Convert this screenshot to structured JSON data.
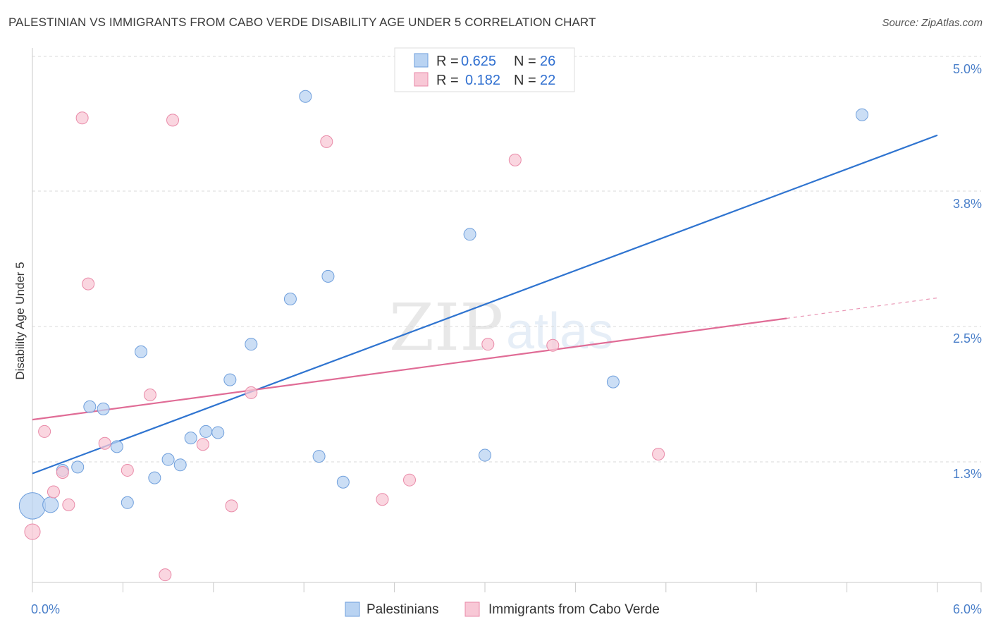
{
  "title": "PALESTINIAN VS IMMIGRANTS FROM CABO VERDE DISABILITY AGE UNDER 5 CORRELATION CHART",
  "source": "Source: ZipAtlas.com",
  "watermark": {
    "zip": "ZIP",
    "atlas": "atlas"
  },
  "colors": {
    "blue_fill": "#b9d3f2",
    "blue_stroke": "#6f9fdc",
    "blue_line": "#2f74d0",
    "pink_fill": "#f8c8d6",
    "pink_stroke": "#e98aa8",
    "pink_line": "#e06c96",
    "grid": "#d9d9d9",
    "tick_label": "#4a7fc9"
  },
  "legend": {
    "rows": [
      {
        "r_label": "R =",
        "r_value": "0.625",
        "n_label": "N =",
        "n_value": "26"
      },
      {
        "r_label": "R =",
        "r_value": "0.182",
        "n_label": "N =",
        "n_value": "22"
      }
    ]
  },
  "chart_data": {
    "type": "scatter",
    "title": "PALESTINIAN VS IMMIGRANTS FROM CABO VERDE DISABILITY AGE UNDER 5 CORRELATION CHART",
    "xlabel": "",
    "ylabel": "Disability Age Under 5",
    "xlim": [
      0,
      6.0
    ],
    "ylim": [
      0.0,
      5.2
    ],
    "x_tick_labels": [
      "0.0%",
      "6.0%"
    ],
    "y_ticks": [
      {
        "value": 5.0,
        "label": "5.0%"
      },
      {
        "value": 3.8,
        "label": "3.8%"
      },
      {
        "value": 2.5,
        "label": "2.5%"
      },
      {
        "value": 1.3,
        "label": "1.3%"
      }
    ],
    "grid": true,
    "legend_position": "top-center",
    "series": [
      {
        "name": "Palestinians",
        "color": "blue",
        "points": [
          [
            0.0,
            0.94,
            2.2
          ],
          [
            0.12,
            0.95,
            1.3
          ],
          [
            0.2,
            1.27,
            1
          ],
          [
            0.3,
            1.3,
            1
          ],
          [
            0.38,
            1.86,
            1
          ],
          [
            0.47,
            1.84,
            1
          ],
          [
            0.56,
            1.49,
            1
          ],
          [
            0.63,
            0.97,
            1
          ],
          [
            0.72,
            2.37,
            1
          ],
          [
            0.81,
            1.2,
            1
          ],
          [
            0.9,
            1.37,
            1
          ],
          [
            0.98,
            1.32,
            1
          ],
          [
            1.05,
            1.57,
            1
          ],
          [
            1.15,
            1.63,
            1
          ],
          [
            1.23,
            1.62,
            1
          ],
          [
            1.31,
            2.11,
            1
          ],
          [
            1.45,
            2.44,
            1
          ],
          [
            1.71,
            2.86,
            1
          ],
          [
            1.81,
            4.74,
            1
          ],
          [
            1.9,
            1.4,
            1
          ],
          [
            1.96,
            3.07,
            1
          ],
          [
            2.06,
            1.16,
            1
          ],
          [
            2.9,
            3.46,
            1
          ],
          [
            3.0,
            1.41,
            1
          ],
          [
            3.85,
            2.09,
            1
          ],
          [
            5.5,
            4.57,
            1
          ]
        ],
        "trend": {
          "x0": 0.0,
          "y0": 1.24,
          "x1": 6.0,
          "y1": 4.38
        }
      },
      {
        "name": "Immigrants from Cabo Verde",
        "color": "pink",
        "points": [
          [
            0.0,
            0.7,
            1.3
          ],
          [
            0.08,
            1.63,
            1
          ],
          [
            0.14,
            1.07,
            1
          ],
          [
            0.2,
            1.25,
            1
          ],
          [
            0.24,
            0.95,
            1
          ],
          [
            0.33,
            4.54,
            1
          ],
          [
            0.37,
            3.0,
            1
          ],
          [
            0.48,
            1.52,
            1
          ],
          [
            0.63,
            1.27,
            1
          ],
          [
            0.78,
            1.97,
            1
          ],
          [
            0.88,
            0.3,
            1
          ],
          [
            0.93,
            4.52,
            1
          ],
          [
            1.13,
            1.51,
            1
          ],
          [
            1.32,
            0.94,
            1
          ],
          [
            1.45,
            1.99,
            1
          ],
          [
            1.95,
            4.32,
            1
          ],
          [
            2.32,
            1.0,
            1
          ],
          [
            2.5,
            1.18,
            1
          ],
          [
            3.02,
            2.44,
            1
          ],
          [
            3.2,
            4.15,
            1
          ],
          [
            3.45,
            2.43,
            1
          ],
          [
            4.15,
            1.42,
            1
          ]
        ],
        "trend": {
          "x0": 0.0,
          "y0": 1.74,
          "x1": 5.0,
          "y1": 2.68,
          "dash_x1": 6.0,
          "dash_y1": 2.87
        }
      }
    ]
  },
  "bottom_legend": [
    {
      "label": "Palestinians",
      "color": "blue"
    },
    {
      "label": "Immigrants from Cabo Verde",
      "color": "pink"
    }
  ]
}
